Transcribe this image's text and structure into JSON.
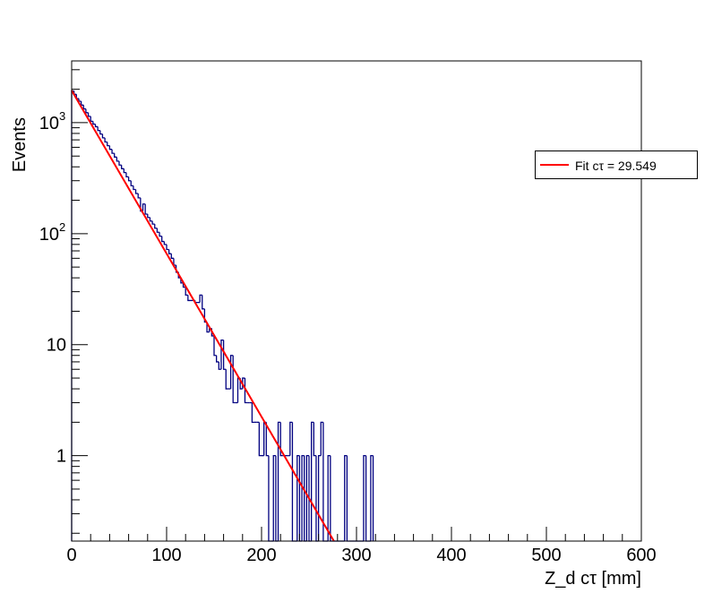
{
  "colors": {
    "histogram": "#000080",
    "fit": "#ff0000",
    "frame": "#000000"
  },
  "legend": {
    "fit_label": "Fit cτ = 29.549"
  },
  "chart_data": {
    "type": "histogram",
    "xlabel": "Z_d cτ [mm]",
    "ylabel": "Events",
    "xlim": [
      0,
      600
    ],
    "ylim": [
      0.17,
      3600
    ],
    "yscale": "log",
    "grid": false,
    "legend_position": "top-right",
    "x_ticks": [
      "0",
      "100",
      "200",
      "300",
      "400",
      "500",
      "600"
    ],
    "y_ticks": [
      {
        "value": 1,
        "label": "1"
      },
      {
        "value": 10,
        "label": "10"
      },
      {
        "value": 100,
        "label": "10",
        "sup": "2"
      },
      {
        "value": 1000,
        "label": "10",
        "sup": "3"
      }
    ],
    "bin_width": 2.5,
    "bin_start": 0,
    "bin_contents": [
      1930,
      1800,
      1650,
      1560,
      1440,
      1330,
      1230,
      1140,
      1030,
      970,
      920,
      850,
      790,
      730,
      670,
      620,
      575,
      530,
      490,
      450,
      415,
      385,
      355,
      325,
      300,
      270,
      250,
      230,
      210,
      160,
      185,
      150,
      140,
      130,
      122,
      112,
      103,
      95,
      85,
      80,
      72,
      66,
      60,
      52,
      45,
      40,
      36,
      33,
      28,
      25,
      25,
      25,
      24,
      24,
      28,
      21,
      16,
      13,
      14,
      12,
      8,
      7,
      6,
      11,
      6,
      4,
      4,
      8,
      3,
      3,
      5,
      4,
      5,
      3,
      3,
      3,
      2,
      2,
      2,
      1,
      1,
      2,
      1,
      0,
      0,
      1,
      0,
      2,
      1,
      1,
      1,
      1,
      2,
      0,
      0,
      1,
      0,
      1,
      0,
      1,
      0,
      2,
      1,
      0,
      1,
      2,
      0,
      0,
      1,
      0,
      0,
      0,
      0,
      0,
      0,
      1,
      0,
      0,
      0,
      0,
      0,
      0,
      0,
      1,
      0,
      0,
      1
    ],
    "fit": {
      "name": "Fit cτ = 29.549",
      "function": "exponential",
      "amplitude": 1950,
      "ctau": 29.549,
      "x_range": [
        0,
        300
      ]
    }
  }
}
